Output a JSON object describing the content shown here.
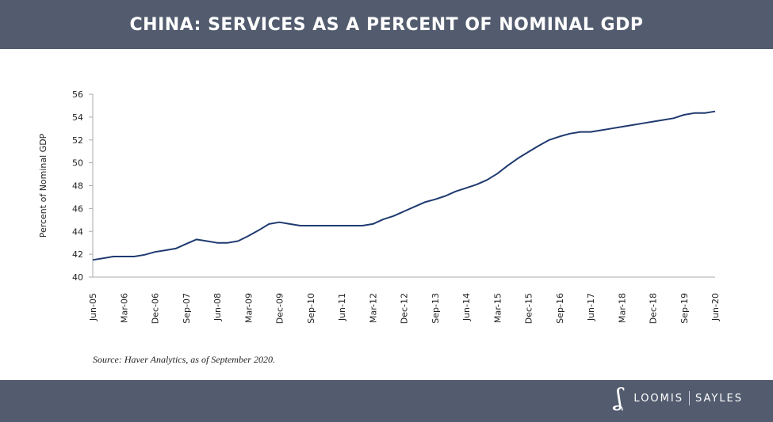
{
  "header": {
    "title": "CHINA: SERVICES AS A PERCENT OF NOMINAL GDP"
  },
  "source": "Source: Haver Analytics, as of September 2020.",
  "logo": {
    "text_left": "LOOMIS",
    "text_right": "SAYLES",
    "mark": "LS"
  },
  "colors": {
    "banner": "#535c6f",
    "line": "#1f3a70",
    "axis": "#aaaaaa"
  },
  "chart_data": {
    "type": "line",
    "title": "CHINA: SERVICES AS A PERCENT OF NOMINAL GDP",
    "xlabel": "",
    "ylabel": "Percent of Nominal GDP",
    "ylim": [
      40,
      56
    ],
    "yticks": [
      40,
      42,
      44,
      46,
      48,
      50,
      52,
      54,
      56
    ],
    "grid": false,
    "categories": [
      "Jun-05",
      "Sep-05",
      "Dec-05",
      "Mar-06",
      "Jun-06",
      "Sep-06",
      "Dec-06",
      "Mar-07",
      "Jun-07",
      "Sep-07",
      "Dec-07",
      "Mar-08",
      "Jun-08",
      "Sep-08",
      "Dec-08",
      "Mar-09",
      "Jun-09",
      "Sep-09",
      "Dec-09",
      "Mar-10",
      "Jun-10",
      "Sep-10",
      "Dec-10",
      "Mar-11",
      "Jun-11",
      "Sep-11",
      "Dec-11",
      "Mar-12",
      "Jun-12",
      "Sep-12",
      "Dec-12",
      "Mar-13",
      "Jun-13",
      "Sep-13",
      "Dec-13",
      "Mar-14",
      "Jun-14",
      "Sep-14",
      "Dec-14",
      "Mar-15",
      "Jun-15",
      "Sep-15",
      "Dec-15",
      "Mar-16",
      "Jun-16",
      "Sep-16",
      "Dec-16",
      "Mar-17",
      "Jun-17",
      "Sep-17",
      "Dec-17",
      "Mar-18",
      "Jun-18",
      "Sep-18",
      "Dec-18",
      "Mar-19",
      "Jun-19",
      "Sep-19",
      "Dec-19",
      "Mar-20",
      "Jun-20"
    ],
    "xtick_labels": [
      "Jun-05",
      "Mar-06",
      "Dec-06",
      "Sep-07",
      "Jun-08",
      "Mar-09",
      "Dec-09",
      "Sep-10",
      "Jun-11",
      "Mar-12",
      "Dec-12",
      "Sep-13",
      "Jun-14",
      "Mar-15",
      "Dec-15",
      "Sep-16",
      "Jun-17",
      "Mar-18",
      "Dec-18",
      "Sep-19",
      "Jun-20"
    ],
    "series": [
      {
        "values": [
          41.5,
          41.65,
          41.8,
          41.8,
          41.8,
          41.95,
          42.2,
          42.35,
          42.5,
          42.9,
          43.3,
          43.15,
          43.0,
          43.0,
          43.15,
          43.6,
          44.1,
          44.65,
          44.8,
          44.65,
          44.5,
          44.5,
          44.5,
          44.5,
          44.5,
          44.5,
          44.5,
          44.65,
          45.05,
          45.35,
          45.75,
          46.15,
          46.55,
          46.8,
          47.1,
          47.5,
          47.8,
          48.1,
          48.5,
          49.05,
          49.75,
          50.4,
          50.95,
          51.5,
          52.0,
          52.3,
          52.55,
          52.7,
          52.7,
          52.85,
          53.0,
          53.15,
          53.3,
          53.45,
          53.6,
          53.75,
          53.9,
          54.2,
          54.35,
          54.35,
          54.5
        ]
      }
    ]
  }
}
